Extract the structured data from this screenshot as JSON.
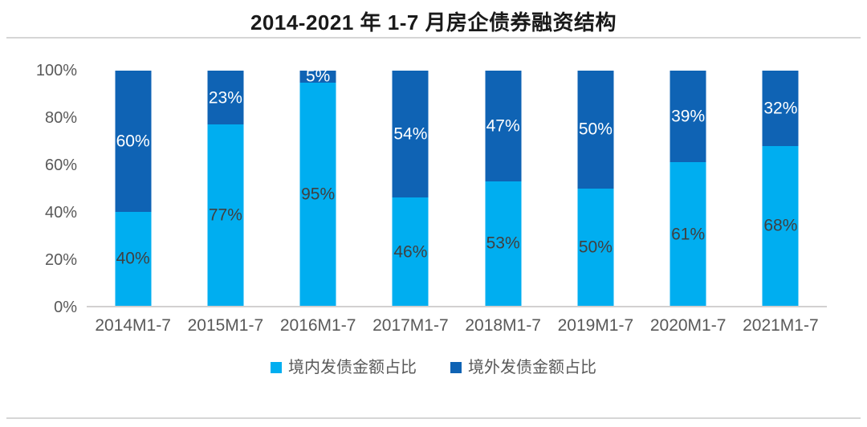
{
  "header": {
    "title": "2014-2021 年 1-7 月房企债券融资结构"
  },
  "chart_data": {
    "type": "bar",
    "stacked": true,
    "title": "2014-2021 年 1-7 月房企债券融资结构",
    "categories": [
      "2014M1-7",
      "2015M1-7",
      "2016M1-7",
      "2017M1-7",
      "2018M1-7",
      "2019M1-7",
      "2020M1-7",
      "2021M1-7"
    ],
    "series": [
      {
        "name": "境内发债金额占比",
        "color": "#00AEF0",
        "label_color": "#404040",
        "values": [
          40,
          77,
          95,
          46,
          53,
          50,
          61,
          68
        ]
      },
      {
        "name": "境外发债金额占比",
        "color": "#0F63B4",
        "label_color": "#ffffff",
        "values": [
          60,
          23,
          5,
          54,
          47,
          50,
          39,
          32
        ]
      }
    ],
    "value_suffix": "%",
    "xlabel": "",
    "ylabel": "",
    "ylim": [
      0,
      100
    ],
    "yticks": [
      "0%",
      "20%",
      "40%",
      "60%",
      "80%",
      "100%"
    ],
    "ytick_values": [
      0,
      20,
      40,
      60,
      80,
      100
    ],
    "grid": false,
    "legend_position": "bottom"
  },
  "style": {
    "axis_label_color": "#595959",
    "baseline_color": "#d2d0d0",
    "divider_color": "#d6d6d6",
    "title_color": "#1a1a1a",
    "background": "#ffffff"
  }
}
